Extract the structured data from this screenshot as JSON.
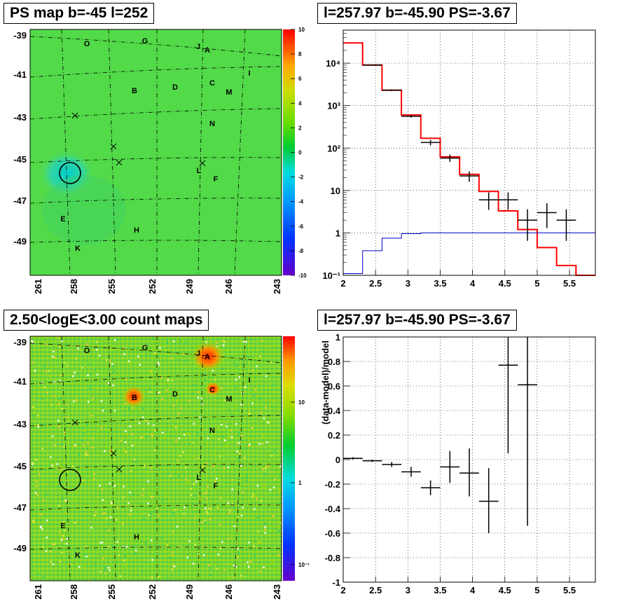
{
  "panels": {
    "ps_map_title": "PS map b=-45 l=252",
    "spectrum_title": "l=257.97 b=-45.90 PS=-3.67",
    "count_map_title": "2.50<logE<3.00 count maps",
    "residual_title": "l=257.97 b=-45.90 PS=-3.67"
  },
  "colors": {
    "model_line": "#ff0000",
    "background_line": "#0000cc",
    "data_points": "#000000",
    "map_base": "#33dd33",
    "hot_spot": "#ff3300",
    "cold_spot": "#00cccc"
  },
  "map_axes": {
    "x_ticks": [
      "261",
      "258",
      "255",
      "252",
      "249",
      "246",
      "243"
    ],
    "y_ticks": [
      "-39",
      "-41",
      "-43",
      "-45",
      "-47",
      "-49"
    ]
  },
  "source_labels": [
    "O",
    "G",
    "J",
    "A",
    "I",
    "B",
    "D",
    "C",
    "M",
    "N",
    "L",
    "F",
    "E",
    "H",
    "K"
  ],
  "ps_colorbar": {
    "ticks": [
      "10",
      "8",
      "6",
      "4",
      "2",
      "0",
      "-2",
      "-4",
      "-6",
      "-8",
      "-10"
    ],
    "range": [
      -10,
      10
    ]
  },
  "count_colorbar": {
    "ticks": [
      "10",
      "1",
      "10⁻¹"
    ]
  },
  "chart_data": [
    {
      "type": "line",
      "panel": "spectrum",
      "log_y": true,
      "xlim": [
        2,
        5.9
      ],
      "ylim": [
        0.1,
        60000
      ],
      "x_ticks": [
        "2",
        "2.5",
        "3",
        "3.5",
        "4",
        "4.5",
        "5",
        "5.5"
      ],
      "y_ticks": [
        "10⁻¹",
        "1",
        "10",
        "10²",
        "10³",
        "10⁴"
      ],
      "grid": true,
      "series": [
        {
          "role": "model",
          "color": "#ff0000",
          "bin_edges": [
            2.0,
            2.3,
            2.6,
            2.9,
            3.2,
            3.5,
            3.8,
            4.1,
            4.4,
            4.7,
            5.0,
            5.3,
            5.6,
            5.9
          ],
          "values": [
            30000,
            9000,
            2300,
            600,
            170,
            62,
            24,
            9.5,
            3.3,
            1.2,
            0.45,
            0.17,
            0.06
          ]
        },
        {
          "role": "background",
          "color": "#0000cc",
          "bin_edges": [
            2.0,
            2.3,
            2.6,
            2.9,
            3.2,
            3.5,
            3.8,
            4.1,
            4.4,
            4.7,
            5.0,
            5.3,
            5.6,
            5.9
          ],
          "values": [
            0.11,
            0.38,
            0.75,
            0.96,
            1,
            1,
            1,
            1,
            1,
            1,
            1,
            1,
            1
          ]
        },
        {
          "role": "data",
          "color": "#000000",
          "points": [
            {
              "x": 2.45,
              "xerr": 0.15,
              "y": 9000,
              "ylo": 8800,
              "yhi": 9200
            },
            {
              "x": 2.75,
              "xerr": 0.15,
              "y": 2300,
              "ylo": 2200,
              "yhi": 2400
            },
            {
              "x": 3.05,
              "xerr": 0.15,
              "y": 560,
              "ylo": 520,
              "yhi": 600
            },
            {
              "x": 3.35,
              "xerr": 0.15,
              "y": 135,
              "ylo": 115,
              "yhi": 155
            },
            {
              "x": 3.65,
              "xerr": 0.15,
              "y": 58,
              "ylo": 47,
              "yhi": 70
            },
            {
              "x": 3.95,
              "xerr": 0.15,
              "y": 22,
              "ylo": 16,
              "yhi": 28
            },
            {
              "x": 4.25,
              "xerr": 0.15,
              "y": 6,
              "ylo": 3.5,
              "yhi": 9
            },
            {
              "x": 4.55,
              "xerr": 0.15,
              "y": 6,
              "ylo": 3.5,
              "yhi": 9
            },
            {
              "x": 4.85,
              "xerr": 0.15,
              "y": 2,
              "ylo": 0.65,
              "yhi": 3.6
            },
            {
              "x": 5.15,
              "xerr": 0.15,
              "y": 3,
              "ylo": 1.3,
              "yhi": 5
            },
            {
              "x": 5.45,
              "xerr": 0.15,
              "y": 2,
              "ylo": 0.65,
              "yhi": 3.6
            }
          ]
        }
      ]
    },
    {
      "type": "scatter",
      "panel": "residual",
      "ylabel": "(data-model)/model",
      "xlim": [
        2,
        5.9
      ],
      "ylim": [
        -1,
        1
      ],
      "x_ticks": [
        "2",
        "2.5",
        "3",
        "3.5",
        "4",
        "4.5",
        "5",
        "5.5"
      ],
      "y_ticks": [
        "-1",
        "-0.8",
        "-0.6",
        "-0.4",
        "-0.2",
        "0",
        "0.2",
        "0.4",
        "0.6",
        "0.8",
        "1"
      ],
      "grid": true,
      "points": [
        {
          "x": 2.15,
          "xerr": 0.15,
          "y": 0.01,
          "ylo": 0.0,
          "yhi": 0.02
        },
        {
          "x": 2.45,
          "xerr": 0.15,
          "y": -0.01,
          "ylo": -0.02,
          "yhi": 0.0
        },
        {
          "x": 2.75,
          "xerr": 0.15,
          "y": -0.04,
          "ylo": -0.06,
          "yhi": -0.02
        },
        {
          "x": 3.05,
          "xerr": 0.15,
          "y": -0.1,
          "ylo": -0.14,
          "yhi": -0.06
        },
        {
          "x": 3.35,
          "xerr": 0.15,
          "y": -0.23,
          "ylo": -0.29,
          "yhi": -0.17
        },
        {
          "x": 3.65,
          "xerr": 0.15,
          "y": -0.06,
          "ylo": -0.19,
          "yhi": 0.07
        },
        {
          "x": 3.95,
          "xerr": 0.15,
          "y": -0.11,
          "ylo": -0.3,
          "yhi": 0.09
        },
        {
          "x": 4.25,
          "xerr": 0.15,
          "y": -0.34,
          "ylo": -0.6,
          "yhi": -0.07
        },
        {
          "x": 4.55,
          "xerr": 0.15,
          "y": 0.77,
          "ylo": 0.05,
          "yhi": 1.0
        },
        {
          "x": 4.85,
          "xerr": 0.15,
          "y": 0.61,
          "ylo": -0.54,
          "yhi": 1.0
        }
      ]
    }
  ]
}
